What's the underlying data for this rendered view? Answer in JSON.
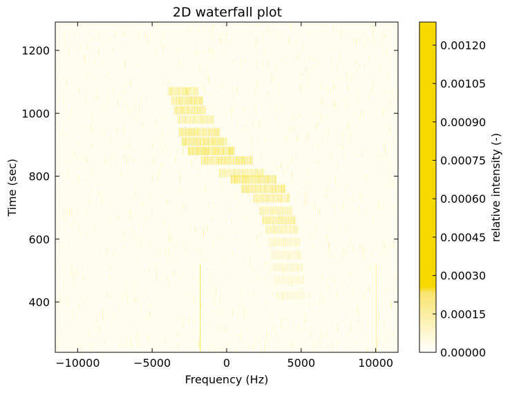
{
  "chart_data": {
    "type": "heatmap",
    "title": "2D waterfall plot",
    "xlabel": "Frequency (Hz)",
    "ylabel": "Time (sec)",
    "xlim": [
      -11500,
      11500
    ],
    "ylim": [
      240,
      1290
    ],
    "xticks": [
      {
        "value": -10000,
        "label": "−10000"
      },
      {
        "value": -5000,
        "label": "−5000"
      },
      {
        "value": 0,
        "label": "0"
      },
      {
        "value": 5000,
        "label": "5000"
      },
      {
        "value": 10000,
        "label": "10000"
      }
    ],
    "yticks": [
      {
        "value": 400,
        "label": "400"
      },
      {
        "value": 600,
        "label": "600"
      },
      {
        "value": 800,
        "label": "800"
      },
      {
        "value": 1000,
        "label": "1000"
      },
      {
        "value": 1200,
        "label": "1200"
      }
    ],
    "colorbar": {
      "label": "relative intensity (-)",
      "range": [
        0,
        0.00129
      ],
      "ticks": [
        {
          "value": 0.0,
          "label": "0.00000"
        },
        {
          "value": 0.00015,
          "label": "0.00015"
        },
        {
          "value": 0.0003,
          "label": "0.00030"
        },
        {
          "value": 0.00045,
          "label": "0.00045"
        },
        {
          "value": 0.0006,
          "label": "0.00060"
        },
        {
          "value": 0.00075,
          "label": "0.00075"
        },
        {
          "value": 0.0009,
          "label": "0.00090"
        },
        {
          "value": 0.00105,
          "label": "0.00105"
        },
        {
          "value": 0.0012,
          "label": "0.00120"
        }
      ],
      "colors": [
        "#ffffff",
        "#f7d800"
      ]
    },
    "signal_track": [
      {
        "time": 1070,
        "freq_start": -3900,
        "freq_end": -1900,
        "intensity": 0.00025
      },
      {
        "time": 1040,
        "freq_start": -3700,
        "freq_end": -1600,
        "intensity": 0.00028
      },
      {
        "time": 1010,
        "freq_start": -3500,
        "freq_end": -1400,
        "intensity": 0.00026
      },
      {
        "time": 980,
        "freq_start": -3300,
        "freq_end": -900,
        "intensity": 0.00022
      },
      {
        "time": 940,
        "freq_start": -3200,
        "freq_end": -500,
        "intensity": 0.0003
      },
      {
        "time": 910,
        "freq_start": -3000,
        "freq_end": 0,
        "intensity": 0.00032
      },
      {
        "time": 880,
        "freq_start": -2600,
        "freq_end": 500,
        "intensity": 0.00035
      },
      {
        "time": 850,
        "freq_start": -1700,
        "freq_end": 1700,
        "intensity": 0.0003
      },
      {
        "time": 810,
        "freq_start": -500,
        "freq_end": 2500,
        "intensity": 0.0002
      },
      {
        "time": 790,
        "freq_start": 300,
        "freq_end": 3300,
        "intensity": 0.00034
      },
      {
        "time": 760,
        "freq_start": 1000,
        "freq_end": 3900,
        "intensity": 0.0003
      },
      {
        "time": 730,
        "freq_start": 1800,
        "freq_end": 4200,
        "intensity": 0.00022
      },
      {
        "time": 690,
        "freq_start": 2200,
        "freq_end": 4400,
        "intensity": 0.00018
      },
      {
        "time": 660,
        "freq_start": 2400,
        "freq_end": 4600,
        "intensity": 0.00022
      },
      {
        "time": 630,
        "freq_start": 2600,
        "freq_end": 4800,
        "intensity": 0.00016
      },
      {
        "time": 590,
        "freq_start": 2800,
        "freq_end": 4900,
        "intensity": 0.00012
      },
      {
        "time": 550,
        "freq_start": 3000,
        "freq_end": 5000,
        "intensity": 0.0001
      },
      {
        "time": 510,
        "freq_start": 3100,
        "freq_end": 5100,
        "intensity": 9e-05
      },
      {
        "time": 470,
        "freq_start": 3200,
        "freq_end": 5200,
        "intensity": 8e-05
      },
      {
        "time": 420,
        "freq_start": 3300,
        "freq_end": 5300,
        "intensity": 7e-05
      }
    ],
    "persistent_lines": [
      {
        "freq": -1800,
        "intensity": 0.0003
      },
      {
        "freq": 10000,
        "intensity": 0.00015
      }
    ],
    "grid": false
  }
}
